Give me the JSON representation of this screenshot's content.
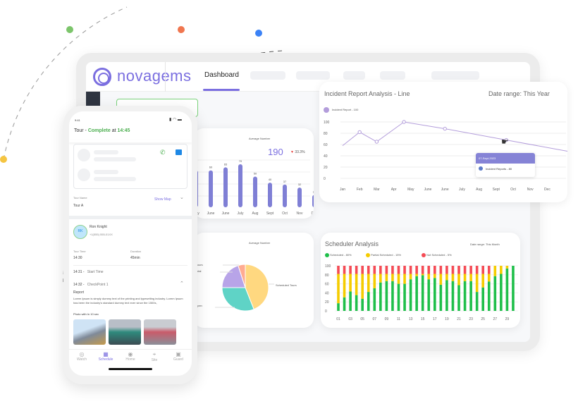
{
  "brand": {
    "name": "novagems",
    "accent": "#7b6fe0"
  },
  "header": {
    "tab_dashboard": "Dashboard"
  },
  "bar_card": {
    "caption": "Average Number",
    "value": "190",
    "change": "33.3%",
    "change_color": "#e53935"
  },
  "line_card": {
    "title": "Incident Report Analysis - Line",
    "date_range": "Date range: This Year",
    "legend": "Incident Report - 100",
    "tooltip_title": "07-Sept-2023",
    "tooltip_item": "Incident Reports - 80"
  },
  "pie_card": {
    "caption": "Average Number",
    "label_right": "Scheduled Tours",
    "label_left_1": "Open",
    "label_left_2": "Total",
    "label_left_3": "Hours"
  },
  "sched_card": {
    "title": "Scheduler Analysis",
    "date_range": "Date range: This Month",
    "legend": [
      "Scheduled - 80%",
      "Partial Scheduled - 15%",
      "Not Scheduled - 5%"
    ]
  },
  "phone": {
    "time": "9:41",
    "title_prefix": "Tour - ",
    "title_status": "Complete",
    "title_mid": " at ",
    "title_time": "14:45",
    "tour_name_label": "Tour Name",
    "tour_name": "Tour A",
    "show_map": "Show Map",
    "avatar": "RK",
    "guard_name": "Ron Knight",
    "guard_phone": "+1(555) 555-01XX",
    "tour_time_label": "Tour Time",
    "tour_time": "14:30",
    "duration_label": "Duration",
    "duration": "45min",
    "start_time": "14:31 -",
    "start_label": "Start Time",
    "cp_time": "14:32 -",
    "cp_label": "CheckPoint 1",
    "report_label": "Report",
    "report_text": "Lorem Ipsum is simply dummy text of the printing and typesetting industry. Lorem Ipsum has been the industry's standard dummy text ever since the 1500s,",
    "photo_label": "Photo with In 10 sec",
    "nav": [
      "Watch",
      "Schedule",
      "Home",
      "Site",
      "Guard"
    ]
  },
  "chart_data": [
    {
      "type": "bar",
      "categories": [
        "May",
        "June",
        "June",
        "July",
        "Aug",
        "Sept",
        "Oct",
        "Nov",
        "Dec"
      ],
      "values": [
        60,
        60,
        65,
        70,
        50,
        40,
        37,
        32,
        20
      ],
      "color": "#7f7fd5"
    },
    {
      "type": "line",
      "title": "Incident Report Analysis - Line",
      "categories": [
        "Jan",
        "Feb",
        "Mar",
        "Apr",
        "May",
        "June",
        "June",
        "July",
        "Aug",
        "Sept",
        "Oct",
        "Nov",
        "Dec"
      ],
      "points": [
        {
          "x": "Jan",
          "y": 58
        },
        {
          "x": "Feb",
          "y": 82
        },
        {
          "x": "Mar",
          "y": 65
        },
        {
          "x": "Apr",
          "y": 100
        },
        {
          "x": "June",
          "y": 88
        },
        {
          "x": "Sept",
          "y": 68
        },
        {
          "x": "Dec",
          "y": 48
        }
      ],
      "yticks": [
        100,
        80,
        60,
        40,
        20,
        0
      ],
      "ylim": [
        0,
        100
      ],
      "color": "#b39ddb"
    },
    {
      "type": "pie",
      "slices": [
        {
          "label": "Scheduled Tours",
          "value": 44,
          "color": "#ffd880"
        },
        {
          "label": "Open",
          "value": 31,
          "color": "#5fd3c6"
        },
        {
          "label": "Total",
          "value": 20,
          "color": "#b8a4e8"
        },
        {
          "label": "Hours",
          "value": 5,
          "color": "#ffab91"
        }
      ]
    },
    {
      "type": "bar",
      "stacked": true,
      "title": "Scheduler Analysis",
      "categories": [
        "01",
        "02",
        "03",
        "04",
        "05",
        "06",
        "07",
        "08",
        "09",
        "10",
        "11",
        "12",
        "13",
        "14",
        "15",
        "16",
        "17",
        "18",
        "19",
        "20",
        "21",
        "22",
        "23",
        "24",
        "25",
        "26",
        "27",
        "28",
        "29",
        "30"
      ],
      "xtick_labels": [
        "01",
        "03",
        "05",
        "07",
        "09",
        "11",
        "13",
        "15",
        "17",
        "19",
        "21",
        "23",
        "25",
        "27",
        "29"
      ],
      "yticks": [
        100,
        80,
        60,
        40,
        20,
        0
      ],
      "ylim": [
        0,
        100
      ],
      "series": [
        {
          "name": "Scheduled",
          "color": "#1fbf4a",
          "values": [
            17,
            30,
            43,
            35,
            27,
            42,
            50,
            63,
            66,
            66,
            60,
            60,
            70,
            77,
            79,
            70,
            73,
            58,
            68,
            66,
            57,
            66,
            66,
            42,
            52,
            65,
            77,
            82,
            94,
            100
          ]
        },
        {
          "name": "Partial Scheduled",
          "color": "#f5cc00",
          "values": [
            65,
            52,
            39,
            47,
            55,
            40,
            32,
            19,
            16,
            16,
            22,
            22,
            12,
            5,
            3,
            12,
            9,
            24,
            14,
            16,
            25,
            16,
            16,
            40,
            30,
            17,
            23,
            18,
            6,
            0
          ]
        },
        {
          "name": "Not Scheduled",
          "color": "#f44b55",
          "values": [
            18,
            18,
            18,
            18,
            18,
            18,
            18,
            18,
            18,
            18,
            18,
            18,
            18,
            18,
            18,
            18,
            18,
            18,
            18,
            18,
            18,
            18,
            18,
            18,
            18,
            18,
            0,
            0,
            0,
            0
          ]
        }
      ]
    }
  ]
}
